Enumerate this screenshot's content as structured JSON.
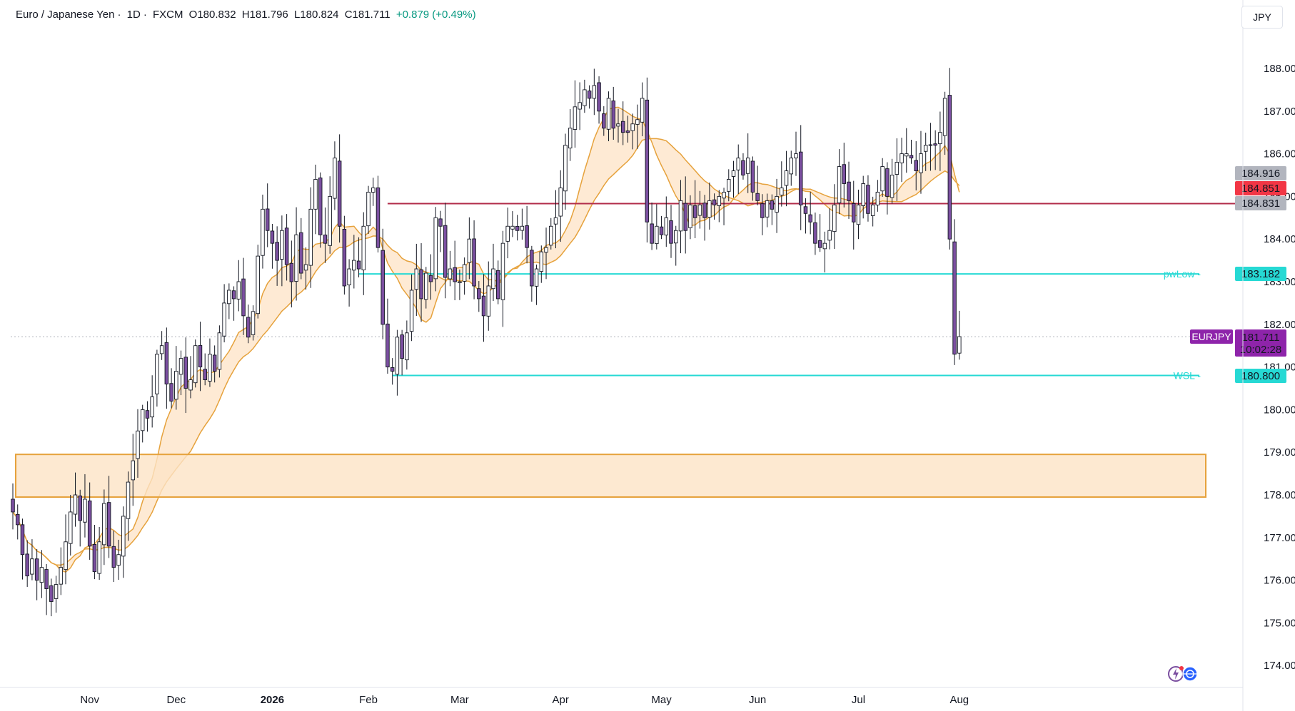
{
  "header": {
    "symbol_name": "Euro / Japanese Yen",
    "interval": "1D",
    "exchange": "FXCM",
    "open": "O180.832",
    "high": "H181.796",
    "low": "L180.824",
    "close": "C181.711",
    "change": "+0.879 (+0.49%)"
  },
  "currency": "JPY",
  "colors": {
    "up": "#ffffff",
    "down": "#7b4fa0",
    "wick": "#131722",
    "cyan": "#26d9d4",
    "red_line": "#b22c4a",
    "band_fill": "#fde3c6",
    "band_line": "#e6a23c",
    "zone_fill": "#fde3c6",
    "zone_border": "#e6a23c",
    "price_tag": "#8e24aa"
  },
  "chart_data": {
    "type": "candlestick",
    "symbol": "EURJPY",
    "y_ticks": [
      "188.000",
      "187.000",
      "186.000",
      "185.000",
      "184.000",
      "183.000",
      "182.000",
      "181.000",
      "180.000",
      "179.000",
      "178.000",
      "177.000",
      "176.000",
      "175.000",
      "174.000"
    ],
    "ylim": [
      173.6,
      188.9
    ],
    "x_ticks": [
      {
        "label": "Nov",
        "index": 16,
        "bold": false
      },
      {
        "label": "Dec",
        "index": 34,
        "bold": false
      },
      {
        "label": "2026",
        "index": 54,
        "bold": true
      },
      {
        "label": "Feb",
        "index": 74,
        "bold": false
      },
      {
        "label": "Mar",
        "index": 93,
        "bold": false
      },
      {
        "label": "Apr",
        "index": 114,
        "bold": false
      },
      {
        "label": "May",
        "index": 135,
        "bold": false
      },
      {
        "label": "Jun",
        "index": 155,
        "bold": false
      },
      {
        "label": "Jul",
        "index": 176,
        "bold": false
      },
      {
        "label": "Aug",
        "index": 197,
        "bold": false
      }
    ],
    "candles_count": 200,
    "closes": [
      177.6,
      177.3,
      176.6,
      176.1,
      176.5,
      176.0,
      176.3,
      175.8,
      175.5,
      175.9,
      176.3,
      176.9,
      177.6,
      178.0,
      177.4,
      177.9,
      176.8,
      176.2,
      176.9,
      177.8,
      176.8,
      176.3,
      176.6,
      177.5,
      178.3,
      178.8,
      179.5,
      180.0,
      179.8,
      180.3,
      181.3,
      181.5,
      180.6,
      180.2,
      180.9,
      181.2,
      180.5,
      180.7,
      181.5,
      181.0,
      180.7,
      181.3,
      180.9,
      181.8,
      182.5,
      182.8,
      182.6,
      183.0,
      182.2,
      181.7,
      182.3,
      183.6,
      184.7,
      184.2,
      183.9,
      183.5,
      184.2,
      183.4,
      183.0,
      184.1,
      183.2,
      183.4,
      184.7,
      185.4,
      184.1,
      183.9,
      185.0,
      185.9,
      184.3,
      182.9,
      183.3,
      183.5,
      183.3,
      184.3,
      185.1,
      185.2,
      183.8,
      182.0,
      181.0,
      180.9,
      181.7,
      181.2,
      181.8,
      182.8,
      183.3,
      182.6,
      183.2,
      183.0,
      184.5,
      184.3,
      183.1,
      183.3,
      183.0,
      183.0,
      183.4,
      184.0,
      182.9,
      182.6,
      182.2,
      182.9,
      183.3,
      182.6,
      183.9,
      184.3,
      184.3,
      184.2,
      184.3,
      183.8,
      182.9,
      183.3,
      183.7,
      183.8,
      184.3,
      184.5,
      185.2,
      186.2,
      186.6,
      187.1,
      187.2,
      187.5,
      187.3,
      187.6,
      187.0,
      186.6,
      187.3,
      186.6,
      186.7,
      186.5,
      186.5,
      186.7,
      186.8,
      187.3,
      184.4,
      183.9,
      184.3,
      184.1,
      184.5,
      183.9,
      184.2,
      184.9,
      184.2,
      184.8,
      184.5,
      184.8,
      184.5,
      184.9,
      184.8,
      185.0,
      185.1,
      185.4,
      185.6,
      185.9,
      185.5,
      185.9,
      185.1,
      184.9,
      184.5,
      184.9,
      184.7,
      185.0,
      185.2,
      185.6,
      185.9,
      186.0,
      184.8,
      184.6,
      184.4,
      183.9,
      183.8,
      183.9,
      184.2,
      184.8,
      185.7,
      185.3,
      184.9,
      184.4,
      184.8,
      185.3,
      184.6,
      184.8,
      185.1,
      185.7,
      185.0,
      185.5,
      185.8,
      186.0,
      186.0,
      185.9,
      185.6,
      186.0,
      186.2,
      186.2,
      186.2,
      186.5,
      187.3,
      184.0,
      181.3,
      181.711
    ],
    "horizontal_levels": [
      {
        "value": 184.831,
        "label": "",
        "color": "#b22c4a"
      },
      {
        "value": 183.182,
        "label": "pwLow",
        "color": "#26d9d4"
      },
      {
        "value": 180.8,
        "label": "WSL",
        "color": "#26d9d4"
      }
    ],
    "zone": {
      "top": 178.95,
      "bottom": 177.95
    },
    "price_tags": [
      {
        "value": 184.916,
        "text": "184.916",
        "bg": "#b2b5be",
        "fg": "#131722"
      },
      {
        "value": 184.851,
        "text": "184.851",
        "bg": "#f23645",
        "fg": "#ffffff"
      },
      {
        "value": 184.831,
        "text": "184.831",
        "bg": "#b2b5be",
        "fg": "#131722"
      },
      {
        "value": 183.182,
        "text": "183.182",
        "bg": "#26d9d4",
        "fg": "#131722"
      },
      {
        "value": 180.8,
        "text": "180.800",
        "bg": "#26d9d4",
        "fg": "#131722"
      }
    ],
    "current": {
      "value": 181.711,
      "text": "181.711",
      "countdown": "10:02:28",
      "symbol_tag": "EURJPY"
    }
  }
}
